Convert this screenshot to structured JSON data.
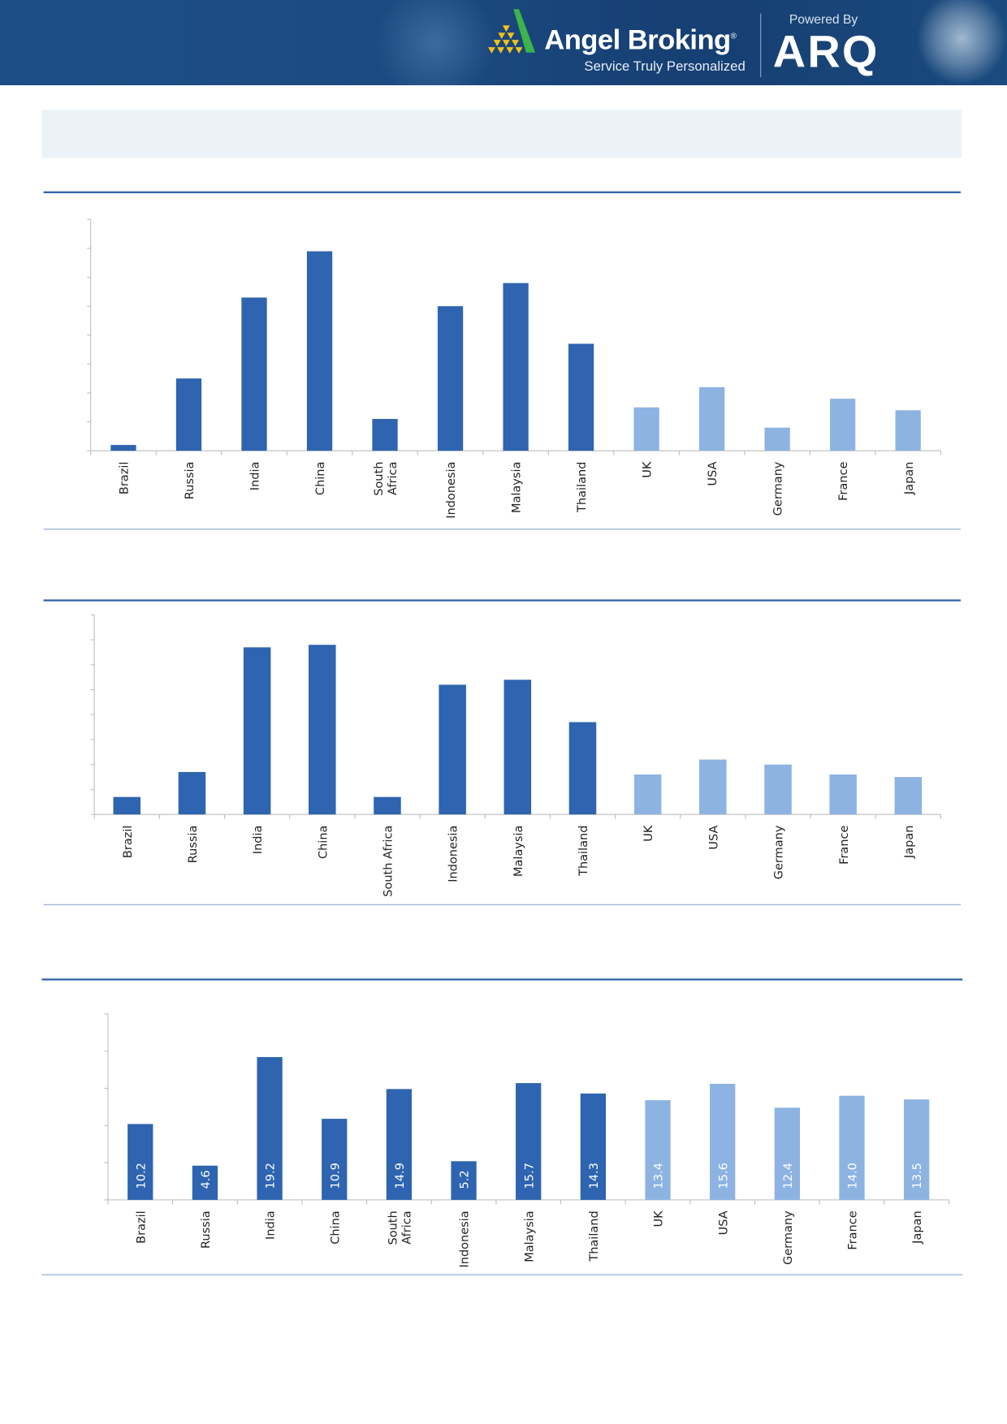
{
  "header": {
    "brand": "Angel Broking",
    "registered": "®",
    "tagline": "Service Truly Personalized",
    "powered_by": "Powered By",
    "product": "ARQ",
    "colors": {
      "background": "#1b4a80",
      "logo_green": "#3cb44a",
      "logo_yellow": "#f2c21b"
    }
  },
  "colors": {
    "emerging": "#2e64b0",
    "developed": "#8db3e2",
    "rule": "#2d5fa6"
  },
  "chart_data": [
    {
      "type": "bar",
      "categories": [
        "Brazil",
        "Russia",
        "India",
        "China",
        "South Africa",
        "Indonesia",
        "Malaysia",
        "Thailand",
        "UK",
        "USA",
        "Germany",
        "France",
        "Japan"
      ],
      "category_lines": [
        [
          "Brazil"
        ],
        [
          "Russia"
        ],
        [
          "India"
        ],
        [
          "China"
        ],
        [
          "South",
          "Africa"
        ],
        [
          "Indonesia"
        ],
        [
          "Malaysia"
        ],
        [
          "Thailand"
        ],
        [
          "UK"
        ],
        [
          "USA"
        ],
        [
          "Germany"
        ],
        [
          "France"
        ],
        [
          "Japan"
        ]
      ],
      "values": [
        0.2,
        2.5,
        5.3,
        6.9,
        1.1,
        5.0,
        5.8,
        3.7,
        1.5,
        2.2,
        0.8,
        1.8,
        1.4
      ],
      "groups": [
        "emerging",
        "emerging",
        "emerging",
        "emerging",
        "emerging",
        "emerging",
        "emerging",
        "emerging",
        "developed",
        "developed",
        "developed",
        "developed",
        "developed"
      ],
      "ylim": [
        0,
        8
      ],
      "y_ticks": 8,
      "tick_labels_shown": false,
      "grid": false,
      "data_labels": false
    },
    {
      "type": "bar",
      "categories": [
        "Brazil",
        "Russia",
        "India",
        "China",
        "South Africa",
        "Indonesia",
        "Malaysia",
        "Thailand",
        "UK",
        "USA",
        "Germany",
        "France",
        "Japan"
      ],
      "category_lines": [
        [
          "Brazil"
        ],
        [
          "Russia"
        ],
        [
          "India"
        ],
        [
          "China"
        ],
        [
          "South Africa"
        ],
        [
          "Indonesia"
        ],
        [
          "Malaysia"
        ],
        [
          "Thailand"
        ],
        [
          "UK"
        ],
        [
          "USA"
        ],
        [
          "Germany"
        ],
        [
          "France"
        ],
        [
          "Japan"
        ]
      ],
      "values": [
        0.7,
        1.7,
        6.7,
        6.8,
        0.7,
        5.2,
        5.4,
        3.7,
        1.6,
        2.2,
        2.0,
        1.6,
        1.5
      ],
      "groups": [
        "emerging",
        "emerging",
        "emerging",
        "emerging",
        "emerging",
        "emerging",
        "emerging",
        "emerging",
        "developed",
        "developed",
        "developed",
        "developed",
        "developed"
      ],
      "ylim": [
        0,
        8
      ],
      "y_ticks": 8,
      "tick_labels_shown": false,
      "grid": false,
      "data_labels": false
    },
    {
      "type": "bar",
      "categories": [
        "Brazil",
        "Russia",
        "India",
        "China",
        "South Africa",
        "Indonesia",
        "Malaysia",
        "Thailand",
        "UK",
        "USA",
        "Germany",
        "France",
        "Japan"
      ],
      "category_lines": [
        [
          "Brazil"
        ],
        [
          "Russia"
        ],
        [
          "India"
        ],
        [
          "China"
        ],
        [
          "South",
          "Africa"
        ],
        [
          "Indonesia"
        ],
        [
          "Malaysia"
        ],
        [
          "Thailand"
        ],
        [
          "UK"
        ],
        [
          "USA"
        ],
        [
          "Germany"
        ],
        [
          "France"
        ],
        [
          "Japan"
        ]
      ],
      "values": [
        10.2,
        4.6,
        19.2,
        10.9,
        14.9,
        5.2,
        15.7,
        14.3,
        13.4,
        15.6,
        12.4,
        14.0,
        13.5
      ],
      "value_labels": [
        "10.2",
        "4.6",
        "19.2",
        "10.9",
        "14.9",
        "5.2",
        "15.7",
        "14.3",
        "13.4",
        "15.6",
        "12.4",
        "14.0",
        "13.5"
      ],
      "groups": [
        "emerging",
        "emerging",
        "emerging",
        "emerging",
        "emerging",
        "emerging",
        "emerging",
        "emerging",
        "developed",
        "developed",
        "developed",
        "developed",
        "developed"
      ],
      "ylim": [
        0,
        25
      ],
      "y_ticks": 5,
      "tick_labels_shown": false,
      "grid": false,
      "data_labels": true
    }
  ]
}
